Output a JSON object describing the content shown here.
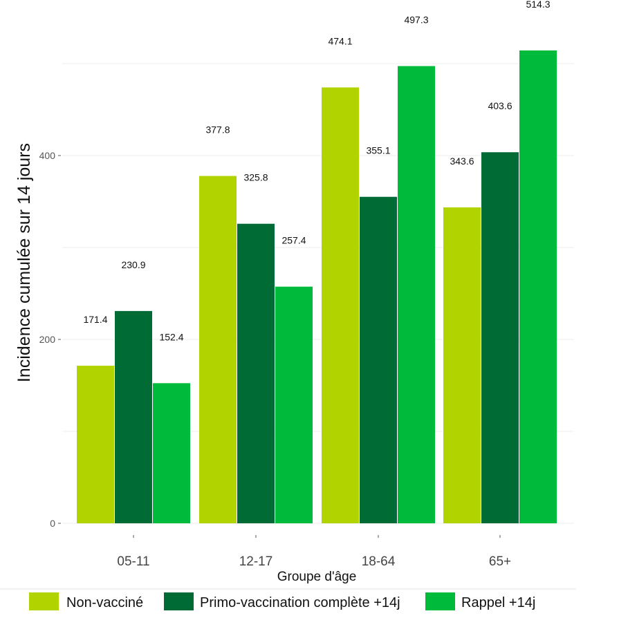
{
  "chart_data": {
    "type": "bar",
    "categories": [
      "05-11",
      "12-17",
      "18-64",
      "65+"
    ],
    "series": [
      {
        "name": "Non-vacciné",
        "values": [
          171.4,
          377.8,
          474.1,
          343.6
        ],
        "color": "#b1d400"
      },
      {
        "name": "Primo-vaccination complète +14j",
        "values": [
          230.9,
          325.8,
          355.1,
          403.6
        ],
        "color": "#006b35"
      },
      {
        "name": "Rappel +14j",
        "values": [
          152.4,
          257.4,
          497.3,
          514.3
        ],
        "color": "#00bb3b"
      }
    ],
    "xlabel": "Groupe d'âge",
    "ylabel": "Incidence cumulée sur 14 jours",
    "ylim": [
      0,
      514.3
    ],
    "y_ticks": [
      0,
      200,
      400
    ],
    "grid": true,
    "legend_position": "bottom"
  }
}
